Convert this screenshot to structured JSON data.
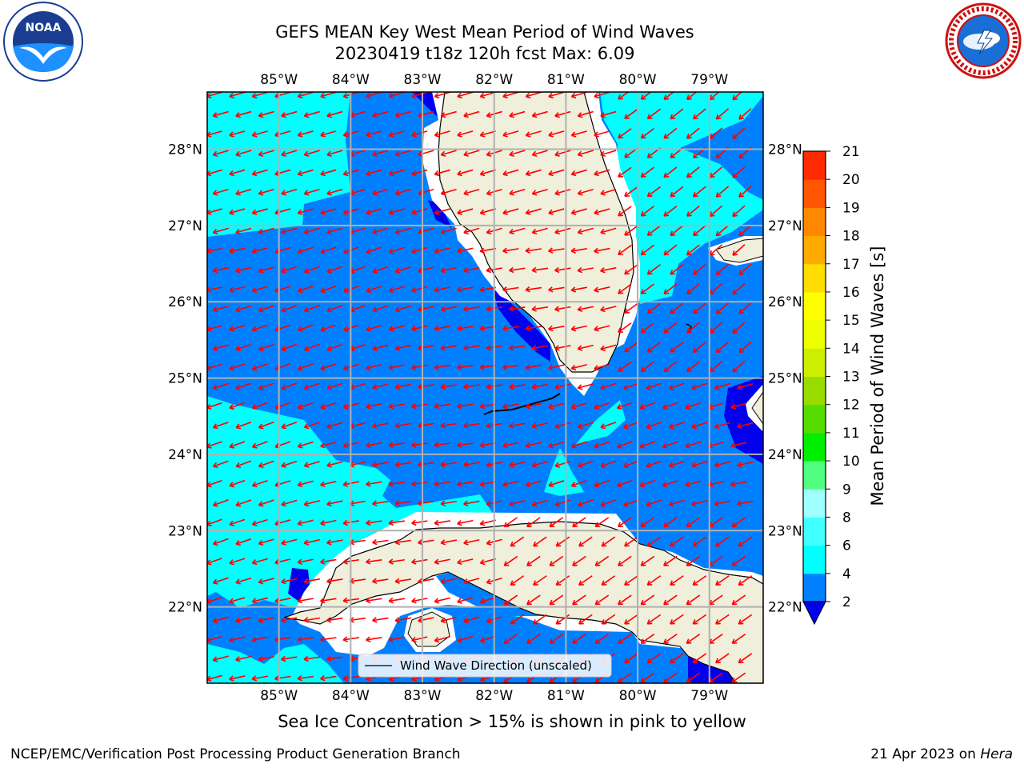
{
  "header": {
    "title_line1": "GEFS MEAN Key West Mean Period of Wind Waves",
    "title_line2": "20230419 t18z 120h fcst   Max: 6.09"
  },
  "logos": {
    "left": "noaa-logo",
    "left_text": "NOAA",
    "right": "nws-logo"
  },
  "map": {
    "extent": {
      "lon_min": -86.0,
      "lon_max": -78.25,
      "lat_min": 21.0,
      "lat_max": 28.75
    },
    "lon_ticks": [
      -85,
      -84,
      -83,
      -82,
      -81,
      -80,
      -79
    ],
    "lon_tick_labels": [
      "85°W",
      "84°W",
      "83°W",
      "82°W",
      "81°W",
      "80°W",
      "79°W"
    ],
    "lat_ticks": [
      22,
      23,
      24,
      25,
      26,
      27,
      28
    ],
    "lat_tick_labels": [
      "22°N",
      "23°N",
      "24°N",
      "25°N",
      "26°N",
      "27°N",
      "28°N"
    ],
    "gridlines": true,
    "land_color": "#efefdc",
    "vector_color": "#ff0000",
    "legend_label": "Wind Wave Direction (unscaled)",
    "legend_location": "lower-center"
  },
  "colorbar": {
    "label": "Mean Period of Wind Waves [s]",
    "levels": [
      2,
      4,
      6,
      8,
      9,
      10,
      11,
      12,
      13,
      14,
      15,
      16,
      17,
      18,
      19,
      20,
      21
    ],
    "tick_labels": [
      "2",
      "4",
      "6",
      "8",
      "9",
      "10",
      "11",
      "12",
      "13",
      "14",
      "15",
      "16",
      "17",
      "18",
      "19",
      "20",
      "21"
    ],
    "colors": [
      "#0080ff",
      "#00ffff",
      "#40ffff",
      "#a0ffff",
      "#50ff80",
      "#00ee00",
      "#55dd00",
      "#99dd00",
      "#ccee00",
      "#eeff00",
      "#ffff00",
      "#ffdd00",
      "#ffaa00",
      "#ff8800",
      "#ff5500",
      "#ff2a00"
    ],
    "under_color": "#0000ee",
    "extend": "min"
  },
  "footer": {
    "note": "Sea Ice Concentration > 15% is shown in pink to yellow",
    "credit": "NCEP/EMC/Verification Post Processing Product Generation Branch",
    "date": "21 Apr 2023 on",
    "host": "Hera"
  }
}
